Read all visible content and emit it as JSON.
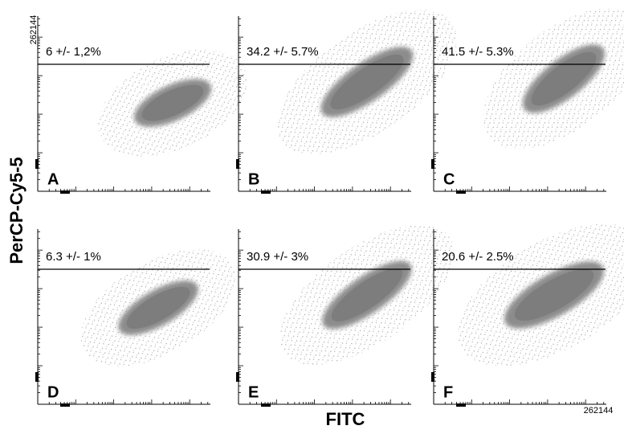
{
  "y_axis_label": "PerCP-Cy5-5",
  "x_axis_label": "FITC",
  "y_axis_max_label": "262144",
  "x_axis_max_label": "262144",
  "panels": [
    {
      "letter": "A",
      "gate_text": "6 +/- 1,2%"
    },
    {
      "letter": "B",
      "gate_text": "34.2 +/- 5.7%"
    },
    {
      "letter": "C",
      "gate_text": "41.5 +/- 5.3%"
    },
    {
      "letter": "D",
      "gate_text": "6.3 +/- 1%"
    },
    {
      "letter": "E",
      "gate_text": "30.9 +/- 3%"
    },
    {
      "letter": "F",
      "gate_text": "20.6 +/- 2.5%"
    }
  ]
}
